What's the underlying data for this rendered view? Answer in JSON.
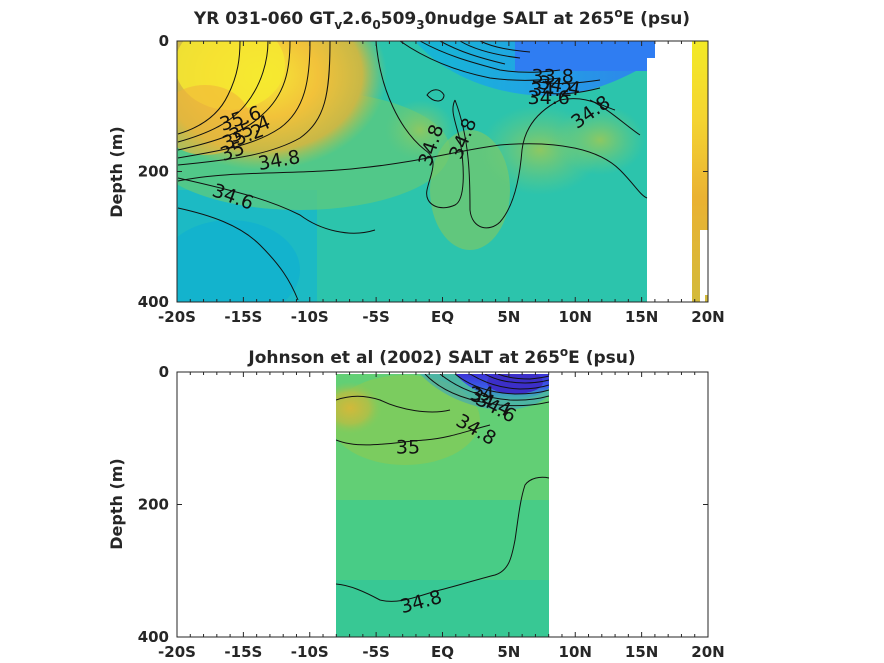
{
  "chart_data": [
    {
      "type": "heatmap",
      "title_parts": [
        "YR 031-060 GT",
        "v",
        "2.6",
        "0",
        "509",
        "3",
        "0nudge SALT at 265",
        "o",
        "E (psu)"
      ],
      "xlabel": "",
      "ylabel": "Depth (m)",
      "xlim": [
        -20,
        20
      ],
      "ylim": [
        400,
        0
      ],
      "x_ticks": [
        -20,
        -15,
        -10,
        -5,
        0,
        5,
        10,
        15,
        20
      ],
      "x_tick_labels": [
        "-20S",
        "-15S",
        "-10S",
        "-5S",
        "EQ",
        "5N",
        "10N",
        "15N",
        "20N"
      ],
      "y_ticks": [
        0,
        200,
        400
      ],
      "y_tick_labels": [
        "0",
        "200",
        "400"
      ],
      "colormap": [
        "#3e26a8",
        "#2f6ff0",
        "#12b0d8",
        "#2cc6a5",
        "#78c96a",
        "#b8bc3f",
        "#ecb72e",
        "#f9f420"
      ],
      "colors": {
        "background": "#2fc7a8",
        "saline_core": "#f5e63a",
        "fresh_pool": "#2f7df0",
        "contour": "#111111"
      },
      "contour_labels": [
        {
          "text": "35.6",
          "x": -15.2,
          "y": 120
        },
        {
          "text": "35.4",
          "x": -14.5,
          "y": 136
        },
        {
          "text": "35.2",
          "x": -15.0,
          "y": 148
        },
        {
          "text": "35",
          "x": -15.8,
          "y": 170
        },
        {
          "text": "34.8",
          "x": -12.3,
          "y": 184
        },
        {
          "text": "34.6",
          "x": -15.8,
          "y": 240
        },
        {
          "text": "34.8",
          "x": -0.8,
          "y": 160
        },
        {
          "text": "34.8",
          "x": 1.6,
          "y": 150
        },
        {
          "text": "33.8",
          "x": 8.3,
          "y": 55
        },
        {
          "text": "34.4",
          "x": 8.8,
          "y": 70
        },
        {
          "text": "34.2",
          "x": 8.2,
          "y": 76
        },
        {
          "text": "34.6",
          "x": 8.0,
          "y": 88
        },
        {
          "text": "34.8",
          "x": 11.2,
          "y": 110
        }
      ]
    },
    {
      "type": "heatmap",
      "title_parts": [
        "Johnson et al (2002) SALT at 265",
        "o",
        "E (psu)"
      ],
      "xlabel": "",
      "ylabel": "Depth (m)",
      "xlim": [
        -20,
        20
      ],
      "ylim": [
        400,
        0
      ],
      "data_extent_x": [
        -8,
        8
      ],
      "x_ticks": [
        -20,
        -15,
        -10,
        -5,
        0,
        5,
        10,
        15,
        20
      ],
      "x_tick_labels": [
        "-20S",
        "-15S",
        "-10S",
        "-5S",
        "EQ",
        "5N",
        "10N",
        "15N",
        "20N"
      ],
      "y_ticks": [
        0,
        200,
        400
      ],
      "y_tick_labels": [
        "0",
        "200",
        "400"
      ],
      "colors": {
        "background": "#5ccf78",
        "saline_core": "#b8b840",
        "fresh_pool": "#4a48e8",
        "contour": "#111111"
      },
      "contour_labels": [
        {
          "text": "35",
          "x": -2.6,
          "y": 115
        },
        {
          "text": "34.8",
          "x": -1.6,
          "y": 348
        },
        {
          "text": "34.4",
          "x": 3.6,
          "y": 47
        },
        {
          "text": "34.6",
          "x": 4.0,
          "y": 55
        },
        {
          "text": "34",
          "x": 3.0,
          "y": 34
        },
        {
          "text": "34.8",
          "x": 2.5,
          "y": 88
        }
      ]
    }
  ]
}
